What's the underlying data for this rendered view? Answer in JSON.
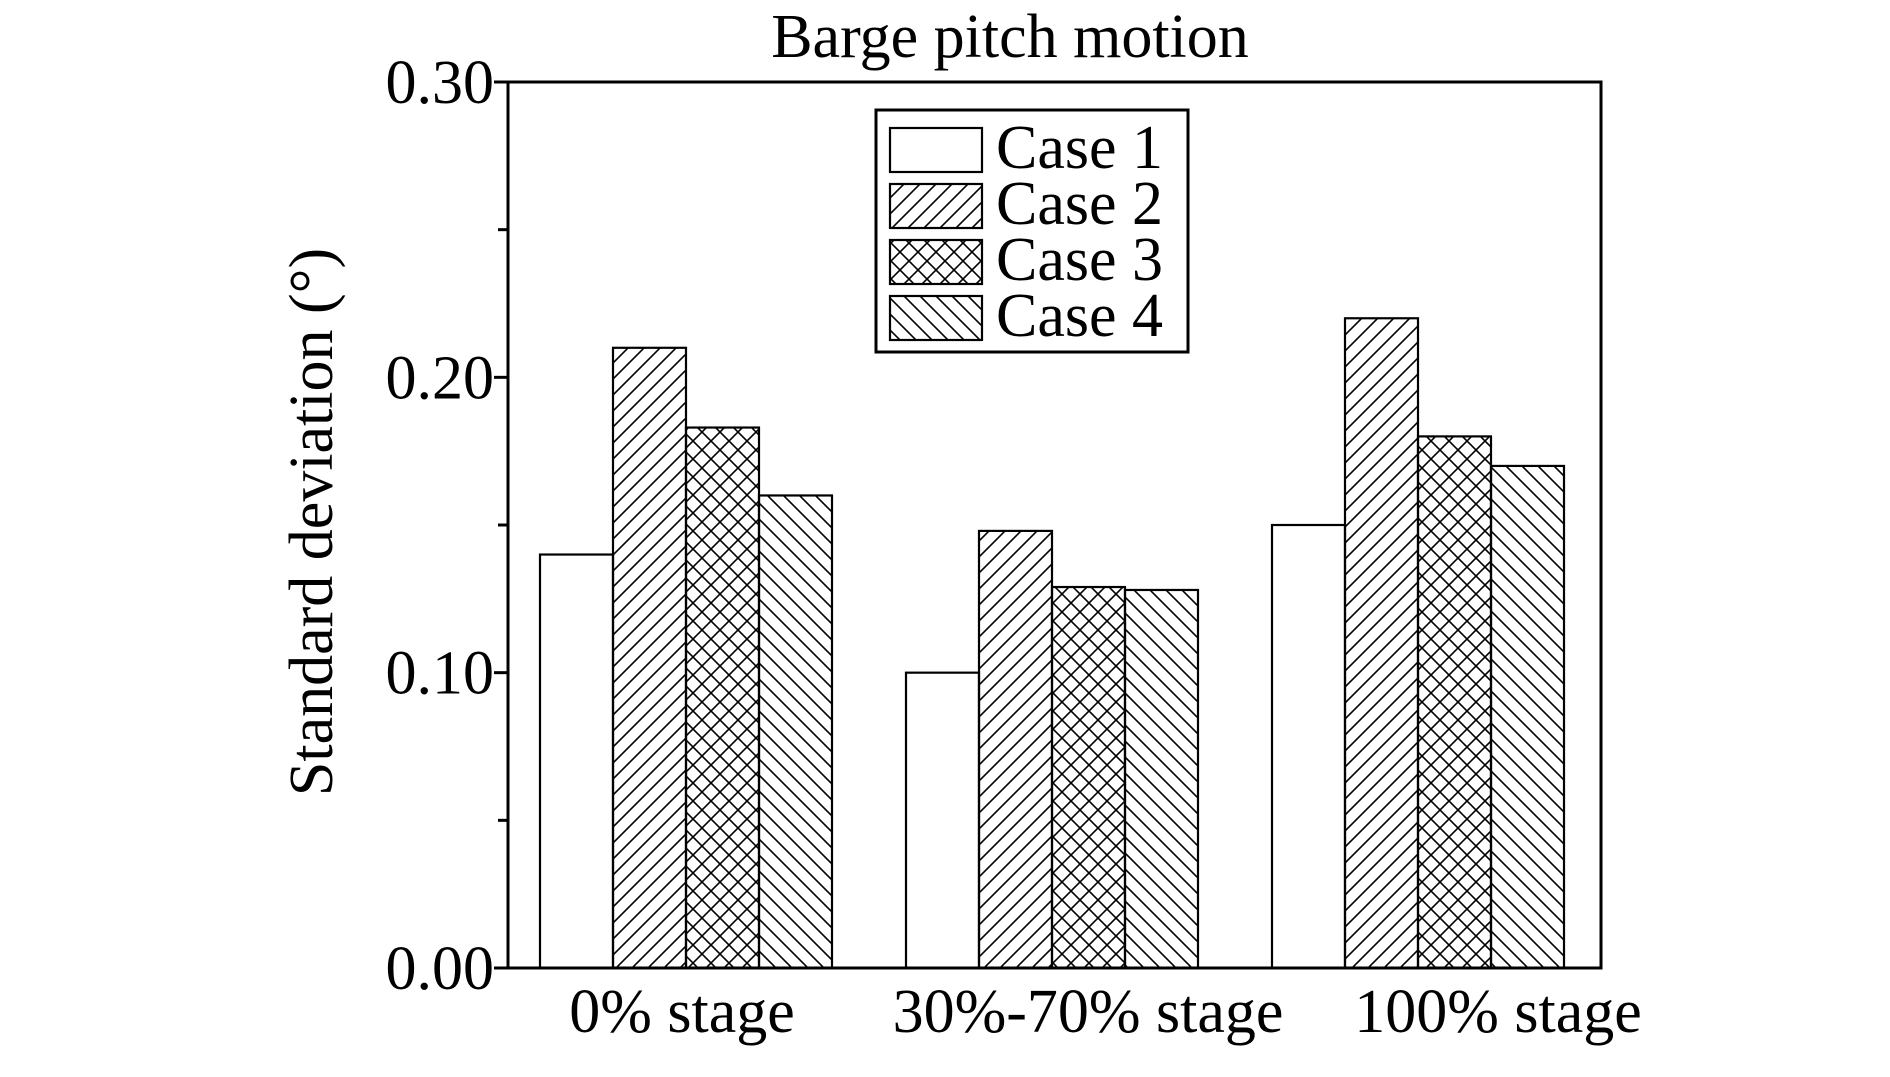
{
  "chart_data": {
    "type": "bar",
    "title": "Barge pitch motion",
    "xlabel": "",
    "ylabel": "Standard deviation (°)",
    "ylim": [
      0,
      0.3
    ],
    "yticks": [
      0.0,
      0.1,
      0.2,
      0.3
    ],
    "ytick_labels": [
      "0.00",
      "0.10",
      "0.20",
      "0.30"
    ],
    "categories": [
      "0% stage",
      "30%-70% stage",
      "100% stage"
    ],
    "series": [
      {
        "name": "Case 1",
        "pattern": "none",
        "values": [
          0.14,
          0.1,
          0.15
        ]
      },
      {
        "name": "Case 2",
        "pattern": "forward-hatch",
        "values": [
          0.21,
          0.148,
          0.22
        ]
      },
      {
        "name": "Case 3",
        "pattern": "cross-hatch",
        "values": [
          0.183,
          0.129,
          0.18
        ]
      },
      {
        "name": "Case 4",
        "pattern": "back-hatch",
        "values": [
          0.16,
          0.128,
          0.17
        ]
      }
    ],
    "legend_position": "top-center",
    "grid": false,
    "colors": {
      "stroke": "#000000",
      "fill": "#ffffff"
    }
  }
}
